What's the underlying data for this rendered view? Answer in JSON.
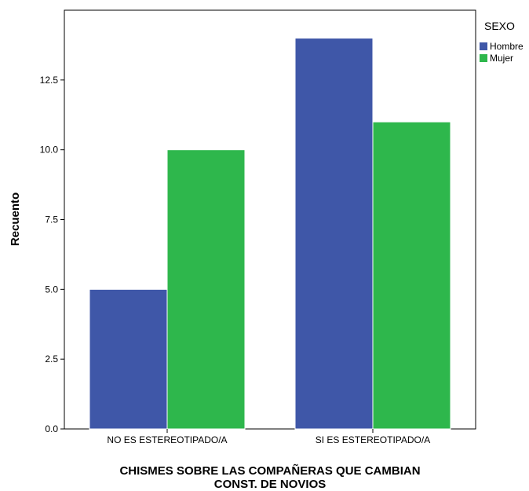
{
  "chart_data": {
    "type": "bar",
    "categories": [
      "NO ES ESTEREOTIPADO/A",
      "SI ES ESTEREOTIPADO/A"
    ],
    "series": [
      {
        "name": "Hombre",
        "values": [
          5,
          14
        ],
        "color": "#3f57a8"
      },
      {
        "name": "Mujer",
        "values": [
          10,
          11
        ],
        "color": "#2eb74c"
      }
    ],
    "ylabel": "Recuento",
    "xlabel_lines": [
      "CHISMES SOBRE LAS COMPAÑERAS QUE CAMBIAN",
      "CONST. DE NOVIOS"
    ],
    "ylim": [
      0,
      15
    ],
    "yticks": [
      0,
      2.5,
      5,
      7.5,
      10,
      12.5
    ],
    "ytick_labels": [
      "0.0",
      "2.5",
      "5.0",
      "7.5",
      "10.0",
      "12.5"
    ],
    "grid": false,
    "legend": {
      "title": "SEXO",
      "placement": "top-right outside"
    }
  }
}
